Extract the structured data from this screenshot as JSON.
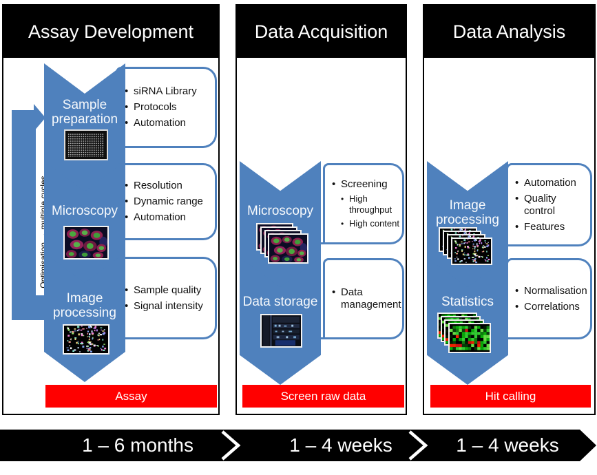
{
  "columns": [
    {
      "header": "Assay Development",
      "side_note": "Optimisation → multiple cycles",
      "steps": [
        {
          "label": "Sample preparation",
          "image": "microplate-image",
          "bullets": [
            {
              "text": "siRNA Library"
            },
            {
              "text": "Protocols"
            },
            {
              "text": "Automation"
            }
          ]
        },
        {
          "label": "Microscopy",
          "image": "fluorescence-cells-image",
          "bullets": [
            {
              "text": "Resolution"
            },
            {
              "text": "Dynamic range"
            },
            {
              "text": "Automation"
            }
          ]
        },
        {
          "label": "Image processing",
          "image": "segmented-cells-image",
          "bullets": [
            {
              "text": "Sample quality"
            },
            {
              "text": "Signal intensity"
            }
          ]
        }
      ],
      "banner": "Assay"
    },
    {
      "header": "Data Acquisition",
      "steps": [
        {
          "label": "Microscopy",
          "image": "fluorescence-cells-stack-image",
          "bullets": [
            {
              "text": "Screening",
              "sub": [
                "High throughput",
                "High content"
              ]
            }
          ]
        },
        {
          "label": "Data storage",
          "image": "server-rack-image",
          "bullets": [
            {
              "text": "Data management"
            }
          ]
        }
      ],
      "banner": "Screen raw data"
    },
    {
      "header": "Data Analysis",
      "steps": [
        {
          "label": "Image processing",
          "image": "segmented-cells-stack-image",
          "bullets": [
            {
              "text": "Automation"
            },
            {
              "text": "Quality control"
            },
            {
              "text": "Features"
            }
          ]
        },
        {
          "label": "Statistics",
          "image": "heatmap-stack-image",
          "bullets": [
            {
              "text": "Normalisation"
            },
            {
              "text": "Correlations"
            }
          ]
        }
      ],
      "banner": "Hit calling"
    }
  ],
  "timeline": {
    "segments": [
      {
        "label": "1 – 6 months"
      },
      {
        "label": "1 – 4 weeks"
      },
      {
        "label": "1 – 4 weeks"
      }
    ]
  },
  "colors": {
    "accent_blue": "#4f81bd",
    "banner_red": "#ff0000",
    "header_bg": "#000000"
  }
}
